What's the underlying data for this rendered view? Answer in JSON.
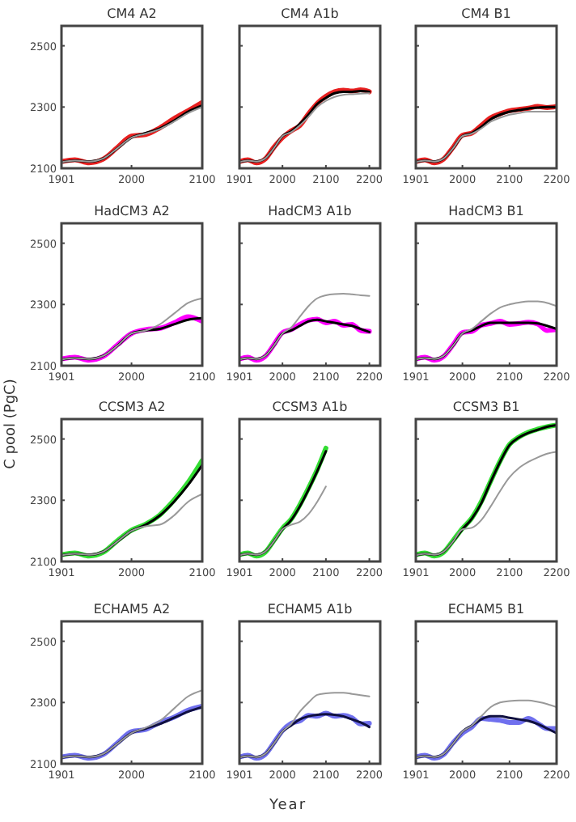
{
  "chart_data": [
    {
      "type": "line",
      "title": "CM4 A2",
      "x": [
        1901,
        1920,
        1940,
        1960,
        1980,
        2000,
        2020,
        2040,
        2060,
        2080,
        2100
      ],
      "xlim": [
        1901,
        2100
      ],
      "xticks": [
        1901,
        2000,
        2100
      ],
      "ylim": [
        2100,
        2565
      ],
      "yticks": [
        2100,
        2300,
        2500
      ],
      "series": [
        {
          "color": "#e82020",
          "values": [
            2122,
            2128,
            2118,
            2130,
            2168,
            2205,
            2210,
            2232,
            2262,
            2288,
            2315
          ]
        },
        {
          "color": "#000000",
          "values": [
            2120,
            2125,
            2122,
            2132,
            2165,
            2200,
            2215,
            2230,
            2255,
            2285,
            2305
          ]
        },
        {
          "color": "#999999",
          "values": [
            2120,
            2125,
            2122,
            2132,
            2165,
            2200,
            2213,
            2228,
            2252,
            2280,
            2300
          ]
        }
      ]
    },
    {
      "type": "line",
      "title": "CM4 A1b",
      "tick_labels": "x",
      "x": [
        1901,
        1920,
        1940,
        1960,
        1980,
        2000,
        2020,
        2040,
        2060,
        2080,
        2100,
        2120,
        2140,
        2160,
        2180,
        2200
      ],
      "xlim": [
        1901,
        2225
      ],
      "xticks": [
        1901,
        2000,
        2100,
        2200
      ],
      "ylim": [
        2100,
        2565
      ],
      "yticks": [
        2100,
        2300,
        2500
      ],
      "series": [
        {
          "color": "#e82020",
          "values": [
            2122,
            2128,
            2118,
            2130,
            2168,
            2200,
            2222,
            2240,
            2278,
            2312,
            2335,
            2350,
            2355,
            2352,
            2356,
            2350
          ]
        },
        {
          "color": "#000000",
          "values": [
            2120,
            2125,
            2122,
            2132,
            2165,
            2205,
            2220,
            2245,
            2275,
            2310,
            2330,
            2345,
            2350,
            2350,
            2352,
            2350
          ]
        },
        {
          "color": "#999999",
          "values": [
            2120,
            2125,
            2122,
            2132,
            2165,
            2205,
            2218,
            2240,
            2268,
            2300,
            2320,
            2333,
            2340,
            2342,
            2344,
            2345
          ]
        }
      ]
    },
    {
      "type": "line",
      "title": "CM4 B1",
      "tick_labels": "x",
      "x": [
        1901,
        1920,
        1940,
        1960,
        1980,
        2000,
        2020,
        2040,
        2060,
        2080,
        2100,
        2120,
        2140,
        2160,
        2180,
        2200
      ],
      "xlim": [
        1901,
        2200
      ],
      "xticks": [
        1901,
        2000,
        2100,
        2200
      ],
      "ylim": [
        2100,
        2565
      ],
      "yticks": [
        2100,
        2300,
        2500
      ],
      "series": [
        {
          "color": "#e82020",
          "values": [
            2122,
            2128,
            2118,
            2130,
            2168,
            2208,
            2215,
            2240,
            2265,
            2278,
            2288,
            2292,
            2296,
            2302,
            2298,
            2302
          ]
        },
        {
          "color": "#000000",
          "values": [
            2120,
            2125,
            2122,
            2132,
            2165,
            2205,
            2215,
            2235,
            2260,
            2275,
            2285,
            2290,
            2295,
            2298,
            2300,
            2300
          ]
        },
        {
          "color": "#999999",
          "values": [
            2120,
            2125,
            2122,
            2132,
            2165,
            2205,
            2213,
            2230,
            2252,
            2265,
            2275,
            2280,
            2285,
            2285,
            2285,
            2285
          ]
        }
      ]
    },
    {
      "type": "line",
      "title": "HadCM3 A2",
      "x": [
        1901,
        1920,
        1940,
        1960,
        1980,
        2000,
        2020,
        2040,
        2060,
        2080,
        2100
      ],
      "xlim": [
        1901,
        2100
      ],
      "xticks": [
        1901,
        2000,
        2100
      ],
      "ylim": [
        2100,
        2565
      ],
      "yticks": [
        2100,
        2300,
        2500
      ],
      "series": [
        {
          "color": "#ff00ff",
          "values": [
            2122,
            2128,
            2118,
            2130,
            2168,
            2205,
            2218,
            2222,
            2240,
            2260,
            2245
          ]
        },
        {
          "color": "#000000",
          "values": [
            2120,
            2125,
            2122,
            2132,
            2165,
            2205,
            2215,
            2220,
            2235,
            2250,
            2255
          ]
        },
        {
          "color": "#999999",
          "values": [
            2120,
            2125,
            2122,
            2132,
            2165,
            2205,
            2215,
            2235,
            2270,
            2305,
            2320
          ]
        }
      ]
    },
    {
      "type": "line",
      "title": "HadCM3 A1b",
      "tick_labels": "x",
      "x": [
        1901,
        1920,
        1940,
        1960,
        1980,
        2000,
        2020,
        2040,
        2060,
        2080,
        2100,
        2120,
        2140,
        2160,
        2180,
        2200
      ],
      "xlim": [
        1901,
        2225
      ],
      "xticks": [
        1901,
        2000,
        2100,
        2200
      ],
      "ylim": [
        2100,
        2565
      ],
      "yticks": [
        2100,
        2300,
        2500
      ],
      "series": [
        {
          "color": "#ff00ff",
          "values": [
            2122,
            2128,
            2118,
            2130,
            2168,
            2208,
            2218,
            2235,
            2248,
            2252,
            2240,
            2245,
            2232,
            2235,
            2215,
            2212
          ]
        },
        {
          "color": "#000000",
          "values": [
            2120,
            2125,
            2122,
            2132,
            2165,
            2205,
            2215,
            2230,
            2245,
            2250,
            2245,
            2240,
            2235,
            2230,
            2220,
            2210
          ]
        },
        {
          "color": "#999999",
          "values": [
            2120,
            2125,
            2122,
            2132,
            2165,
            2205,
            2225,
            2260,
            2295,
            2320,
            2330,
            2334,
            2335,
            2333,
            2330,
            2328
          ]
        }
      ]
    },
    {
      "type": "line",
      "title": "HadCM3 B1",
      "tick_labels": "x",
      "x": [
        1901,
        1920,
        1940,
        1960,
        1980,
        2000,
        2020,
        2040,
        2060,
        2080,
        2100,
        2120,
        2140,
        2160,
        2180,
        2200
      ],
      "xlim": [
        1901,
        2200
      ],
      "xticks": [
        1901,
        2000,
        2100,
        2200
      ],
      "ylim": [
        2100,
        2565
      ],
      "yticks": [
        2100,
        2300,
        2500
      ],
      "series": [
        {
          "color": "#ff00ff",
          "values": [
            2122,
            2128,
            2118,
            2130,
            2168,
            2208,
            2212,
            2232,
            2238,
            2245,
            2235,
            2238,
            2242,
            2236,
            2215,
            2218
          ]
        },
        {
          "color": "#000000",
          "values": [
            2120,
            2125,
            2122,
            2132,
            2165,
            2205,
            2215,
            2230,
            2240,
            2240,
            2240,
            2240,
            2240,
            2238,
            2230,
            2220
          ]
        },
        {
          "color": "#999999",
          "values": [
            2120,
            2125,
            2122,
            2132,
            2165,
            2205,
            2220,
            2245,
            2270,
            2290,
            2300,
            2306,
            2310,
            2310,
            2305,
            2295
          ]
        }
      ]
    },
    {
      "type": "line",
      "title": "CCSM3 A2",
      "ylabel": "C pool (PgC)",
      "x": [
        1901,
        1920,
        1940,
        1960,
        1980,
        2000,
        2020,
        2040,
        2060,
        2080,
        2100
      ],
      "xlim": [
        1901,
        2100
      ],
      "xticks": [
        1901,
        2000,
        2100
      ],
      "ylim": [
        2100,
        2565
      ],
      "yticks": [
        2100,
        2300,
        2500
      ],
      "series": [
        {
          "color": "#33dd33",
          "values": [
            2122,
            2128,
            2118,
            2130,
            2168,
            2202,
            2222,
            2252,
            2300,
            2358,
            2430
          ]
        },
        {
          "color": "#000000",
          "values": [
            2120,
            2125,
            2122,
            2132,
            2165,
            2200,
            2220,
            2250,
            2295,
            2350,
            2415
          ]
        },
        {
          "color": "#999999",
          "values": [
            2120,
            2125,
            2122,
            2132,
            2165,
            2200,
            2215,
            2220,
            2250,
            2295,
            2320
          ]
        }
      ]
    },
    {
      "type": "line",
      "title": "CCSM3 A1b",
      "tick_labels": "x",
      "x": [
        1901,
        1920,
        1940,
        1960,
        1980,
        2000,
        2020,
        2040,
        2060,
        2080,
        2100
      ],
      "xlim": [
        1901,
        2225
      ],
      "xticks": [
        1901,
        2000,
        2100,
        2200
      ],
      "ylim": [
        2100,
        2565
      ],
      "yticks": [
        2100,
        2300,
        2500
      ],
      "series": [
        {
          "color": "#33dd33",
          "values": [
            2122,
            2128,
            2118,
            2130,
            2168,
            2208,
            2238,
            2285,
            2340,
            2400,
            2470
          ]
        },
        {
          "color": "#000000",
          "values": [
            2120,
            2125,
            2122,
            2132,
            2165,
            2205,
            2235,
            2280,
            2335,
            2395,
            2460
          ]
        },
        {
          "color": "#999999",
          "values": [
            2120,
            2125,
            2122,
            2132,
            2165,
            2205,
            2220,
            2230,
            2255,
            2295,
            2345
          ]
        }
      ]
    },
    {
      "type": "line",
      "title": "CCSM3 B1",
      "tick_labels": "x",
      "x": [
        1901,
        1920,
        1940,
        1960,
        1980,
        2000,
        2020,
        2040,
        2060,
        2080,
        2100,
        2120,
        2140,
        2160,
        2180,
        2200
      ],
      "xlim": [
        1901,
        2200
      ],
      "xticks": [
        1901,
        2000,
        2100,
        2200
      ],
      "ylim": [
        2100,
        2565
      ],
      "yticks": [
        2100,
        2300,
        2500
      ],
      "series": [
        {
          "color": "#33dd33",
          "values": [
            2122,
            2128,
            2118,
            2130,
            2168,
            2208,
            2242,
            2295,
            2362,
            2428,
            2482,
            2506,
            2522,
            2532,
            2540,
            2545
          ]
        },
        {
          "color": "#000000",
          "values": [
            2120,
            2125,
            2122,
            2132,
            2165,
            2205,
            2240,
            2290,
            2360,
            2425,
            2480,
            2505,
            2520,
            2530,
            2540,
            2545
          ]
        },
        {
          "color": "#999999",
          "values": [
            2120,
            2125,
            2122,
            2132,
            2165,
            2205,
            2210,
            2235,
            2280,
            2330,
            2375,
            2405,
            2425,
            2440,
            2452,
            2458
          ]
        }
      ]
    },
    {
      "type": "line",
      "title": "ECHAM5 A2",
      "x": [
        1901,
        1920,
        1940,
        1960,
        1980,
        2000,
        2020,
        2040,
        2060,
        2080,
        2100
      ],
      "xlim": [
        1901,
        2100
      ],
      "xticks": [
        1901,
        2000,
        2100
      ],
      "ylim": [
        2100,
        2565
      ],
      "yticks": [
        2100,
        2300,
        2500
      ],
      "series": [
        {
          "color": "#7070ee",
          "values": [
            2122,
            2128,
            2118,
            2130,
            2168,
            2205,
            2212,
            2235,
            2252,
            2275,
            2288
          ]
        },
        {
          "color": "#101040",
          "values": [
            2120,
            2125,
            2122,
            2132,
            2165,
            2200,
            2215,
            2230,
            2250,
            2270,
            2285
          ]
        },
        {
          "color": "#999999",
          "values": [
            2120,
            2125,
            2122,
            2132,
            2165,
            2200,
            2218,
            2240,
            2280,
            2320,
            2340
          ]
        }
      ]
    },
    {
      "type": "line",
      "title": "ECHAM5 A1b",
      "xlabel": "Year",
      "tick_labels": "x",
      "x": [
        1901,
        1920,
        1940,
        1960,
        1980,
        2000,
        2020,
        2040,
        2060,
        2080,
        2100,
        2120,
        2140,
        2160,
        2180,
        2200
      ],
      "xlim": [
        1901,
        2225
      ],
      "xticks": [
        1901,
        2000,
        2100,
        2200
      ],
      "ylim": [
        2100,
        2565
      ],
      "yticks": [
        2100,
        2300,
        2500
      ],
      "series": [
        {
          "color": "#7070ee",
          "values": [
            2122,
            2128,
            2118,
            2130,
            2168,
            2208,
            2232,
            2240,
            2258,
            2255,
            2265,
            2255,
            2258,
            2250,
            2230,
            2232
          ]
        },
        {
          "color": "#101040",
          "values": [
            2120,
            2125,
            2122,
            2132,
            2165,
            2205,
            2225,
            2245,
            2255,
            2260,
            2262,
            2260,
            2255,
            2245,
            2235,
            2220
          ]
        },
        {
          "color": "#999999",
          "values": [
            2120,
            2125,
            2122,
            2132,
            2165,
            2205,
            2230,
            2270,
            2300,
            2325,
            2330,
            2332,
            2332,
            2328,
            2324,
            2320
          ]
        }
      ]
    },
    {
      "type": "line",
      "title": "ECHAM5 B1",
      "tick_labels": "x",
      "x": [
        1901,
        1920,
        1940,
        1960,
        1980,
        2000,
        2020,
        2040,
        2060,
        2080,
        2100,
        2120,
        2140,
        2160,
        2180,
        2200
      ],
      "xlim": [
        1901,
        2200
      ],
      "xticks": [
        1901,
        2000,
        2100,
        2200
      ],
      "ylim": [
        2100,
        2565
      ],
      "yticks": [
        2100,
        2300,
        2500
      ],
      "series": [
        {
          "color": "#7070ee",
          "values": [
            2122,
            2128,
            2118,
            2130,
            2168,
            2200,
            2220,
            2248,
            2245,
            2242,
            2235,
            2235,
            2248,
            2232,
            2215,
            2215
          ]
        },
        {
          "color": "#101040",
          "values": [
            2120,
            2125,
            2122,
            2132,
            2165,
            2205,
            2225,
            2245,
            2255,
            2255,
            2250,
            2245,
            2240,
            2230,
            2215,
            2200
          ]
        },
        {
          "color": "#999999",
          "values": [
            2120,
            2125,
            2122,
            2132,
            2165,
            2205,
            2225,
            2255,
            2285,
            2300,
            2305,
            2307,
            2307,
            2302,
            2295,
            2285
          ]
        }
      ]
    }
  ]
}
